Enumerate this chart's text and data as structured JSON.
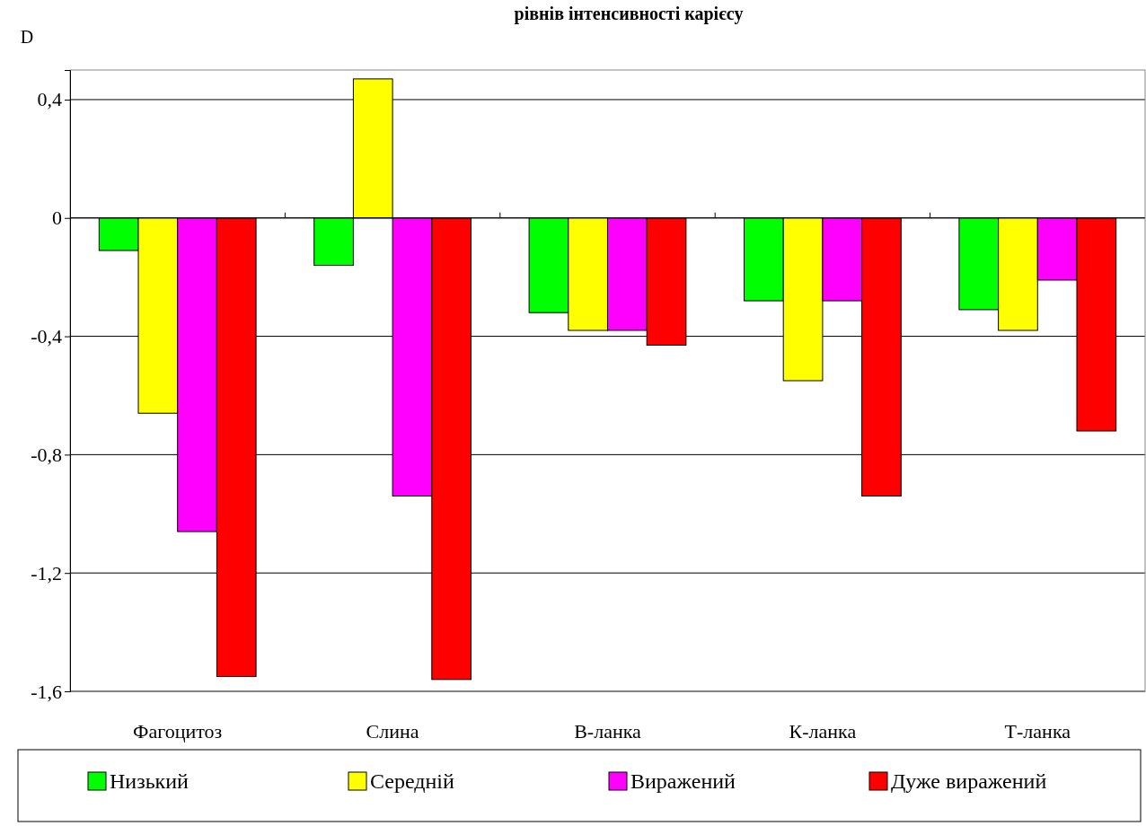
{
  "chart_data": {
    "type": "bar",
    "title": "рівнів інтенсивності карієсу",
    "ylabel": "D",
    "categories": [
      "Фагоцитоз",
      "Слина",
      "В-ланка",
      "К-ланка",
      "Т-ланка"
    ],
    "series": [
      {
        "name": "Низький",
        "color": "#00ff00",
        "values": [
          -0.11,
          -0.16,
          -0.32,
          -0.28,
          -0.31
        ]
      },
      {
        "name": "Середній",
        "color": "#ffff00",
        "values": [
          -0.66,
          0.47,
          -0.38,
          -0.55,
          -0.38
        ]
      },
      {
        "name": "Виражений",
        "color": "#ff00ff",
        "values": [
          -1.06,
          -0.94,
          -0.38,
          -0.28,
          -0.21
        ]
      },
      {
        "name": "Дуже виражений",
        "color": "#ff0000",
        "values": [
          -1.55,
          -1.56,
          -0.43,
          -0.94,
          -0.72
        ]
      }
    ],
    "ylim": [
      -1.6,
      0.5
    ],
    "yticks": [
      {
        "value": -1.6,
        "label": "-1,6"
      },
      {
        "value": -1.2,
        "label": "-1,2"
      },
      {
        "value": -0.8,
        "label": "-0,8"
      },
      {
        "value": -0.4,
        "label": "-0,4"
      },
      {
        "value": 0,
        "label": "0"
      },
      {
        "value": 0.4,
        "label": "0,4"
      }
    ],
    "grid": "y",
    "legend": "bottom"
  }
}
